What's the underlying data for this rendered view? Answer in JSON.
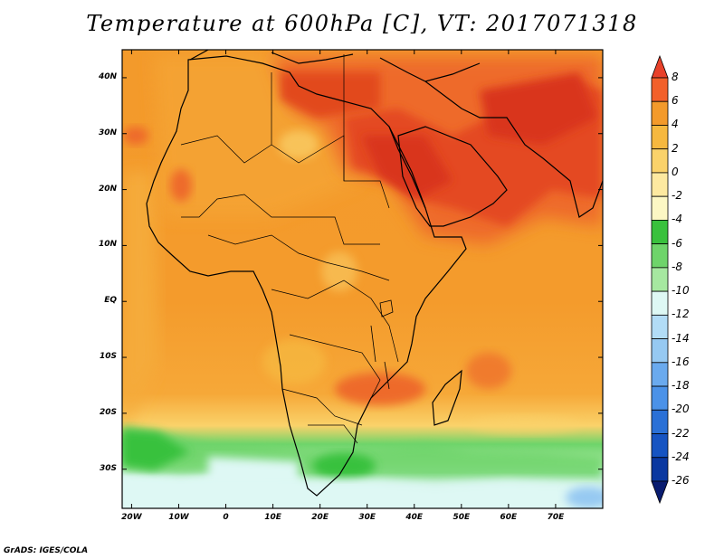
{
  "title": "Temperature at 600hPa [C], VT: 2017071318",
  "credit": "GrADS: IGES/COLA",
  "map": {
    "lat_labels": [
      "40N",
      "30N",
      "20N",
      "10N",
      "EQ",
      "10S",
      "20S",
      "30S"
    ],
    "lon_labels": [
      "20W",
      "10W",
      "0",
      "10E",
      "20E",
      "30E",
      "40E",
      "50E",
      "60E",
      "70E"
    ],
    "lon_range": [
      -22,
      80
    ],
    "lat_range": [
      -37,
      45
    ]
  },
  "colorbar": {
    "labels": [
      "8",
      "6",
      "4",
      "2",
      "0",
      "-2",
      "-4",
      "-6",
      "-8",
      "-10",
      "-12",
      "-14",
      "-16",
      "-18",
      "-20",
      "-22",
      "-24",
      "-26"
    ],
    "colors": [
      "#e8412a",
      "#f2602a",
      "#f39a2b",
      "#f6b83f",
      "#fad26a",
      "#fde9a0",
      "#fcf7c4",
      "#39c13d",
      "#6ed46a",
      "#a6e8a0",
      "#def8f4",
      "#b2dcf6",
      "#96c9f2",
      "#6aaaee",
      "#4b92e8",
      "#2a70d6",
      "#1654c2",
      "#0a38a0",
      "#091c70"
    ]
  },
  "colors": {
    "hot": "#d9361e",
    "warm": "#f08a2a",
    "mild": "#f5aa36",
    "cool": "#fad26a",
    "cold_green": "#5fcf5a",
    "pale": "#def8f4"
  }
}
